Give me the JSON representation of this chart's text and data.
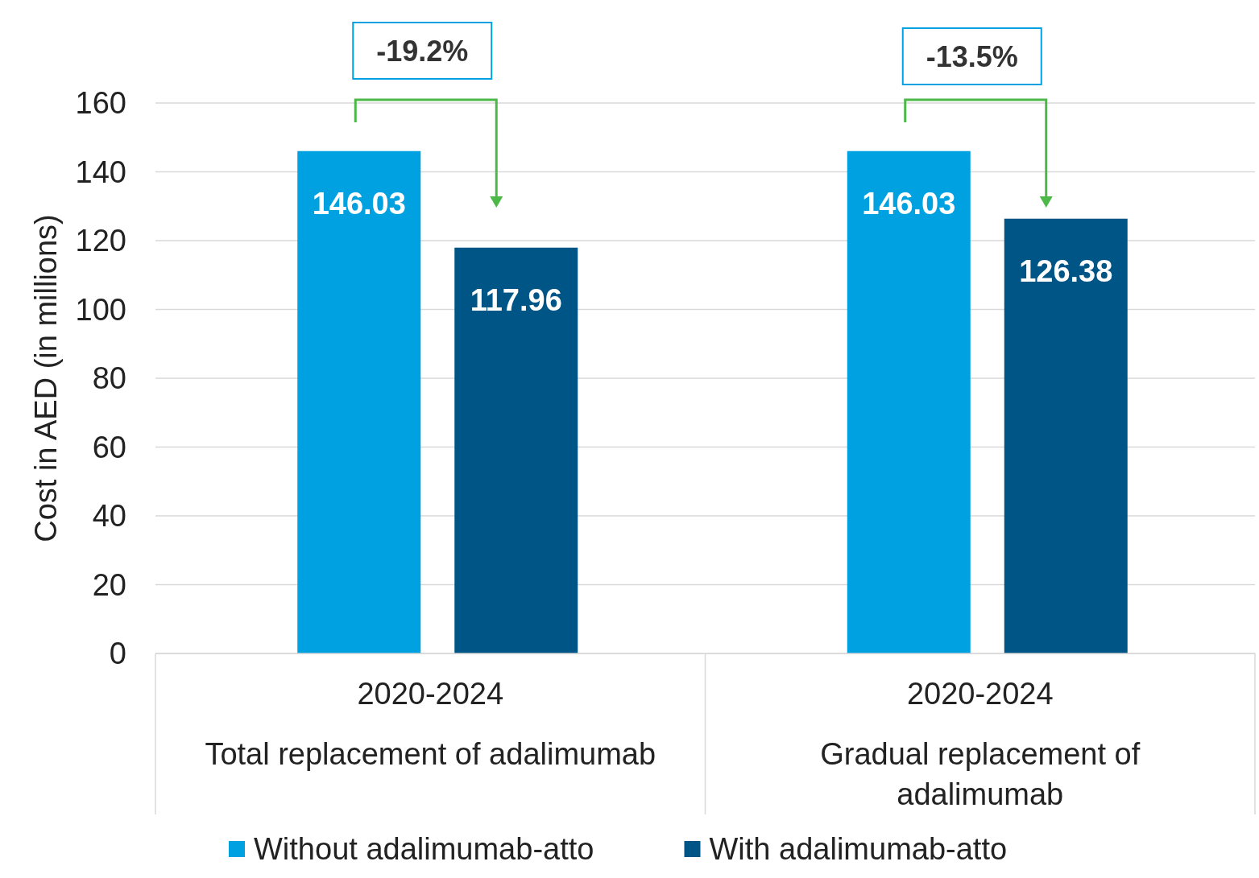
{
  "chart_data": {
    "type": "bar",
    "ylabel": "Cost in AED (in millions)",
    "categories": [
      "2020-2024\nTotal replacement of adalimumab",
      "2020-2024\nGradual replacement of adalimumab"
    ],
    "series": [
      {
        "name": "Without adalimumab-atto",
        "color": "#00a1e0",
        "values": [
          146.03,
          146.03
        ]
      },
      {
        "name": "With adalimumab-atto",
        "color": "#005587",
        "values": [
          117.96,
          126.38
        ]
      }
    ],
    "ylim": [
      0,
      160
    ],
    "yticks": [
      0,
      20,
      40,
      60,
      80,
      100,
      120,
      140,
      160
    ],
    "grid": "y",
    "legend": "bottom",
    "data_labels": true,
    "annotations": [
      "-19.2%",
      "-13.5%"
    ]
  }
}
